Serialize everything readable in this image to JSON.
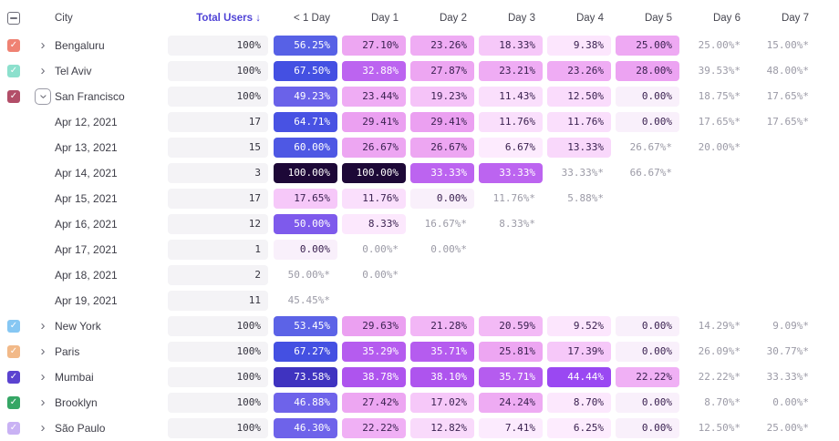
{
  "header": {
    "columns": [
      "City",
      "Total Users ↓",
      "< 1 Day",
      "Day 1",
      "Day 2",
      "Day 3",
      "Day 4",
      "Day 5",
      "Day 6",
      "Day 7"
    ],
    "accent_color": "#4f43d6"
  },
  "palette": {
    "muted_text": "#9b9aa6",
    "dark_cell_text": "#3a2150",
    "pill_bg": "#f4f3f6"
  },
  "rows": [
    {
      "kind": "city",
      "label": "Bengaluru",
      "checkbox": "#ef8273",
      "chevron": "right",
      "total": "100%",
      "cells": [
        {
          "text": "56.25%",
          "style": "background:#5761e6;color:#ffffff"
        },
        {
          "text": "27.10%",
          "style": "background:#eda6f2"
        },
        {
          "text": "23.26%",
          "style": "background:#efacf4"
        },
        {
          "text": "18.33%",
          "style": "background:#f6c8f9"
        },
        {
          "text": "9.38%",
          "style": "background:#fce6fd"
        },
        {
          "text": "25.00%",
          "style": "background:#eea9f3"
        },
        {
          "text": "25.00%*",
          "style": "color:#9b9aa6"
        },
        {
          "text": "15.00%*",
          "style": "color:#9b9aa6"
        }
      ]
    },
    {
      "kind": "city",
      "label": "Tel Aviv",
      "checkbox": "#8ce0cd",
      "chevron": "right",
      "total": "100%",
      "cells": [
        {
          "text": "67.50%",
          "style": "background:#4450e2;color:#ffffff"
        },
        {
          "text": "32.88%",
          "style": "background:#bc64f0;color:#ffffff"
        },
        {
          "text": "27.87%",
          "style": "background:#eda6f2"
        },
        {
          "text": "23.21%",
          "style": "background:#efacf4"
        },
        {
          "text": "23.26%",
          "style": "background:#efacf4"
        },
        {
          "text": "28.00%",
          "style": "background:#eca3f2"
        },
        {
          "text": "39.53%*",
          "style": "color:#9b9aa6"
        },
        {
          "text": "48.00%*",
          "style": "color:#9b9aa6"
        }
      ]
    },
    {
      "kind": "city",
      "label": "San Francisco",
      "checkbox": "#b24e68",
      "chevron": "down",
      "chevron_boxed": true,
      "total": "100%",
      "cells": [
        {
          "text": "49.23%",
          "style": "background:#6a62e9;color:#ffffff"
        },
        {
          "text": "23.44%",
          "style": "background:#efacf4"
        },
        {
          "text": "19.23%",
          "style": "background:#f5c3f8"
        },
        {
          "text": "11.43%",
          "style": "background:#fadffc"
        },
        {
          "text": "12.50%",
          "style": "background:#fadcfc"
        },
        {
          "text": "0.00%",
          "style": "background:#f9f0fb"
        },
        {
          "text": "18.75%*",
          "style": "color:#9b9aa6"
        },
        {
          "text": "17.65%*",
          "style": "color:#9b9aa6"
        }
      ]
    },
    {
      "kind": "date",
      "label": "Apr 12, 2021",
      "total": "17",
      "cells": [
        {
          "text": "64.71%",
          "style": "background:#4852e3;color:#ffffff"
        },
        {
          "text": "29.41%",
          "style": "background:#eba0f1"
        },
        {
          "text": "29.41%",
          "style": "background:#eba0f1"
        },
        {
          "text": "11.76%",
          "style": "background:#fadffc"
        },
        {
          "text": "11.76%",
          "style": "background:#fadffc"
        },
        {
          "text": "0.00%",
          "style": "background:#f9f0fb"
        },
        {
          "text": "17.65%*",
          "style": "color:#9b9aa6"
        },
        {
          "text": "17.65%*",
          "style": "color:#9b9aa6"
        }
      ]
    },
    {
      "kind": "date",
      "label": "Apr 13, 2021",
      "total": "15",
      "cells": [
        {
          "text": "60.00%",
          "style": "background:#4e58e4;color:#ffffff"
        },
        {
          "text": "26.67%",
          "style": "background:#eda6f2"
        },
        {
          "text": "26.67%",
          "style": "background:#eda6f2"
        },
        {
          "text": "6.67%",
          "style": "background:#fdebfe"
        },
        {
          "text": "13.33%",
          "style": "background:#f9d8fb"
        },
        {
          "text": "26.67%*",
          "style": "color:#9b9aa6"
        },
        {
          "text": "20.00%*",
          "style": "color:#9b9aa6"
        },
        null
      ]
    },
    {
      "kind": "date",
      "label": "Apr 14, 2021",
      "total": "3",
      "cells": [
        {
          "text": "100.00%",
          "style": "background:#1d0837;color:#ffffff"
        },
        {
          "text": "100.00%",
          "style": "background:#1d0837;color:#ffffff"
        },
        {
          "text": "33.33%",
          "style": "background:#bc64f0;color:#ffffff"
        },
        {
          "text": "33.33%",
          "style": "background:#bc64f0;color:#ffffff"
        },
        {
          "text": "33.33%*",
          "style": "color:#9b9aa6"
        },
        {
          "text": "66.67%*",
          "style": "color:#9b9aa6"
        },
        null,
        null
      ]
    },
    {
      "kind": "date",
      "label": "Apr 15, 2021",
      "total": "17",
      "cells": [
        {
          "text": "17.65%",
          "style": "background:#f6c8f9"
        },
        {
          "text": "11.76%",
          "style": "background:#fadffc"
        },
        {
          "text": "0.00%",
          "style": "background:#f9f0fb"
        },
        {
          "text": "11.76%*",
          "style": "color:#9b9aa6"
        },
        {
          "text": "5.88%*",
          "style": "color:#9b9aa6"
        },
        null,
        null,
        null
      ]
    },
    {
      "kind": "date",
      "label": "Apr 16, 2021",
      "total": "12",
      "cells": [
        {
          "text": "50.00%",
          "style": "background:#7e5aec;color:#ffffff"
        },
        {
          "text": "8.33%",
          "style": "background:#fce8fd"
        },
        {
          "text": "16.67%*",
          "style": "color:#9b9aa6"
        },
        {
          "text": "8.33%*",
          "style": "color:#9b9aa6"
        },
        null,
        null,
        null,
        null
      ]
    },
    {
      "kind": "date",
      "label": "Apr 17, 2021",
      "total": "1",
      "cells": [
        {
          "text": "0.00%",
          "style": "background:#f9f0fb"
        },
        {
          "text": "0.00%*",
          "style": "color:#9b9aa6"
        },
        {
          "text": "0.00%*",
          "style": "color:#9b9aa6"
        },
        null,
        null,
        null,
        null,
        null
      ]
    },
    {
      "kind": "date",
      "label": "Apr 18, 2021",
      "total": "2",
      "cells": [
        {
          "text": "50.00%*",
          "style": "color:#9b9aa6"
        },
        {
          "text": "0.00%*",
          "style": "color:#9b9aa6"
        },
        null,
        null,
        null,
        null,
        null,
        null
      ]
    },
    {
      "kind": "date",
      "label": "Apr 19, 2021",
      "total": "11",
      "cells": [
        {
          "text": "45.45%*",
          "style": "color:#9b9aa6"
        },
        null,
        null,
        null,
        null,
        null,
        null,
        null
      ]
    },
    {
      "kind": "city",
      "label": "New York",
      "checkbox": "#86c7f3",
      "chevron": "right",
      "total": "100%",
      "cells": [
        {
          "text": "53.45%",
          "style": "background:#5c63e7;color:#ffffff"
        },
        {
          "text": "29.63%",
          "style": "background:#eba0f1"
        },
        {
          "text": "21.28%",
          "style": "background:#f2b6f6"
        },
        {
          "text": "20.59%",
          "style": "background:#f3baf6"
        },
        {
          "text": "9.52%",
          "style": "background:#fce6fd"
        },
        {
          "text": "0.00%",
          "style": "background:#f9f0fb"
        },
        {
          "text": "14.29%*",
          "style": "color:#9b9aa6"
        },
        {
          "text": "9.09%*",
          "style": "color:#9b9aa6"
        }
      ]
    },
    {
      "kind": "city",
      "label": "Paris",
      "checkbox": "#f2b988",
      "chevron": "right",
      "total": "100%",
      "cells": [
        {
          "text": "67.27%",
          "style": "background:#4450e2;color:#ffffff"
        },
        {
          "text": "35.29%",
          "style": "background:#b55cef;color:#ffffff"
        },
        {
          "text": "35.71%",
          "style": "background:#b55cef;color:#ffffff"
        },
        {
          "text": "25.81%",
          "style": "background:#eda6f2"
        },
        {
          "text": "17.39%",
          "style": "background:#f6c8f9"
        },
        {
          "text": "0.00%",
          "style": "background:#f9f0fb"
        },
        {
          "text": "26.09%*",
          "style": "color:#9b9aa6"
        },
        {
          "text": "30.77%*",
          "style": "color:#9b9aa6"
        }
      ]
    },
    {
      "kind": "city",
      "label": "Mumbai",
      "checkbox": "#5b43d0",
      "chevron": "right",
      "total": "100%",
      "cells": [
        {
          "text": "73.58%",
          "style": "background:#3f33c0;color:#ffffff"
        },
        {
          "text": "38.78%",
          "style": "background:#ae54ee;color:#ffffff"
        },
        {
          "text": "38.10%",
          "style": "background:#ae54ee;color:#ffffff"
        },
        {
          "text": "35.71%",
          "style": "background:#b55cef;color:#ffffff"
        },
        {
          "text": "44.44%",
          "style": "background:#9a48f2;color:#ffffff"
        },
        {
          "text": "22.22%",
          "style": "background:#f0b0f5"
        },
        {
          "text": "22.22%*",
          "style": "color:#9b9aa6"
        },
        {
          "text": "33.33%*",
          "style": "color:#9b9aa6"
        }
      ]
    },
    {
      "kind": "city",
      "label": "Brooklyn",
      "checkbox": "#35a665",
      "chevron": "right",
      "total": "100%",
      "cells": [
        {
          "text": "46.88%",
          "style": "background:#6e63ea;color:#ffffff"
        },
        {
          "text": "27.42%",
          "style": "background:#eda6f2"
        },
        {
          "text": "17.02%",
          "style": "background:#f6c8f9"
        },
        {
          "text": "24.24%",
          "style": "background:#eeabf3"
        },
        {
          "text": "8.70%",
          "style": "background:#fce8fd"
        },
        {
          "text": "0.00%",
          "style": "background:#f9f0fb"
        },
        {
          "text": "8.70%*",
          "style": "color:#9b9aa6"
        },
        {
          "text": "0.00%*",
          "style": "color:#9b9aa6"
        }
      ]
    },
    {
      "kind": "city",
      "label": "São Paulo",
      "checkbox": "#c9b2f4",
      "chevron": "right",
      "total": "100%",
      "cells": [
        {
          "text": "46.30%",
          "style": "background:#6e63ea;color:#ffffff"
        },
        {
          "text": "22.22%",
          "style": "background:#f0b0f5"
        },
        {
          "text": "12.82%",
          "style": "background:#f9dafb"
        },
        {
          "text": "7.41%",
          "style": "background:#fcebfe"
        },
        {
          "text": "6.25%",
          "style": "background:#fdecfe"
        },
        {
          "text": "0.00%",
          "style": "background:#f9f0fb"
        },
        {
          "text": "12.50%*",
          "style": "color:#9b9aa6"
        },
        {
          "text": "25.00%*",
          "style": "color:#9b9aa6"
        }
      ]
    }
  ]
}
